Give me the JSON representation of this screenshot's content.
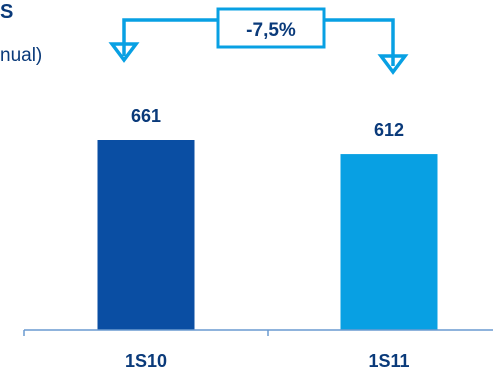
{
  "title_fragment": "S",
  "subtitle_fragment": "nual)",
  "chart_data": {
    "type": "bar",
    "categories": [
      "1S10",
      "1S11"
    ],
    "values": [
      661,
      612
    ],
    "value_labels": [
      "661",
      "612"
    ],
    "colors": [
      "#0a4ea3",
      "#08a0e3"
    ],
    "ylim": [
      0,
      661
    ],
    "annotation": {
      "text": "-7,5%",
      "color": "#08a0e3"
    },
    "axis_color": "#6a9ad0"
  }
}
